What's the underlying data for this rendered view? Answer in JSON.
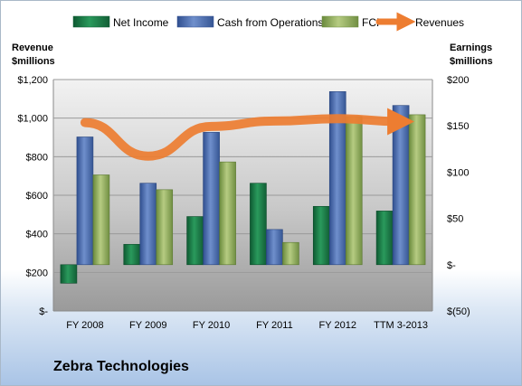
{
  "company": "Zebra Technologies",
  "chart_data": {
    "type": "bar",
    "categories": [
      "FY 2008",
      "FY 2009",
      "FY 2010",
      "FY 2011",
      "FY 2012",
      "TTM 3-2013"
    ],
    "left_axis": {
      "title_lines": [
        "Revenue",
        "$millions"
      ],
      "ylim": [
        0,
        1200
      ],
      "ticks": [
        0,
        200,
        400,
        600,
        800,
        1000,
        1200
      ],
      "tick_labels": [
        "$-",
        "$200",
        "$400",
        "$600",
        "$800",
        "$1,000",
        "$1,200"
      ]
    },
    "right_axis": {
      "title_lines": [
        "Earnings",
        "$millions"
      ],
      "ylim": [
        -50,
        200
      ],
      "ticks": [
        -50,
        0,
        50,
        100,
        150,
        200
      ],
      "tick_labels": [
        "$(50)",
        "$-",
        "$50",
        "$100",
        "$150",
        "$200"
      ]
    },
    "series": [
      {
        "name": "Net Income",
        "axis": "right",
        "type": "bar",
        "color": "#1f7a4a",
        "values": [
          -20,
          22,
          52,
          88,
          63,
          58
        ]
      },
      {
        "name": "Cash from Operations",
        "axis": "right",
        "type": "bar",
        "color": "#4f6fad",
        "values": [
          138,
          88,
          143,
          38,
          187,
          172
        ]
      },
      {
        "name": "FCF",
        "axis": "right",
        "type": "bar",
        "color": "#8faa5c",
        "values": [
          97,
          81,
          111,
          24,
          160,
          162
        ]
      },
      {
        "name": "Revenues",
        "axis": "left",
        "type": "line",
        "color": "#ed7d31",
        "values": [
          977,
          803,
          957,
          985,
          997,
          982
        ]
      }
    ],
    "legend_position": "top",
    "grid": true
  }
}
